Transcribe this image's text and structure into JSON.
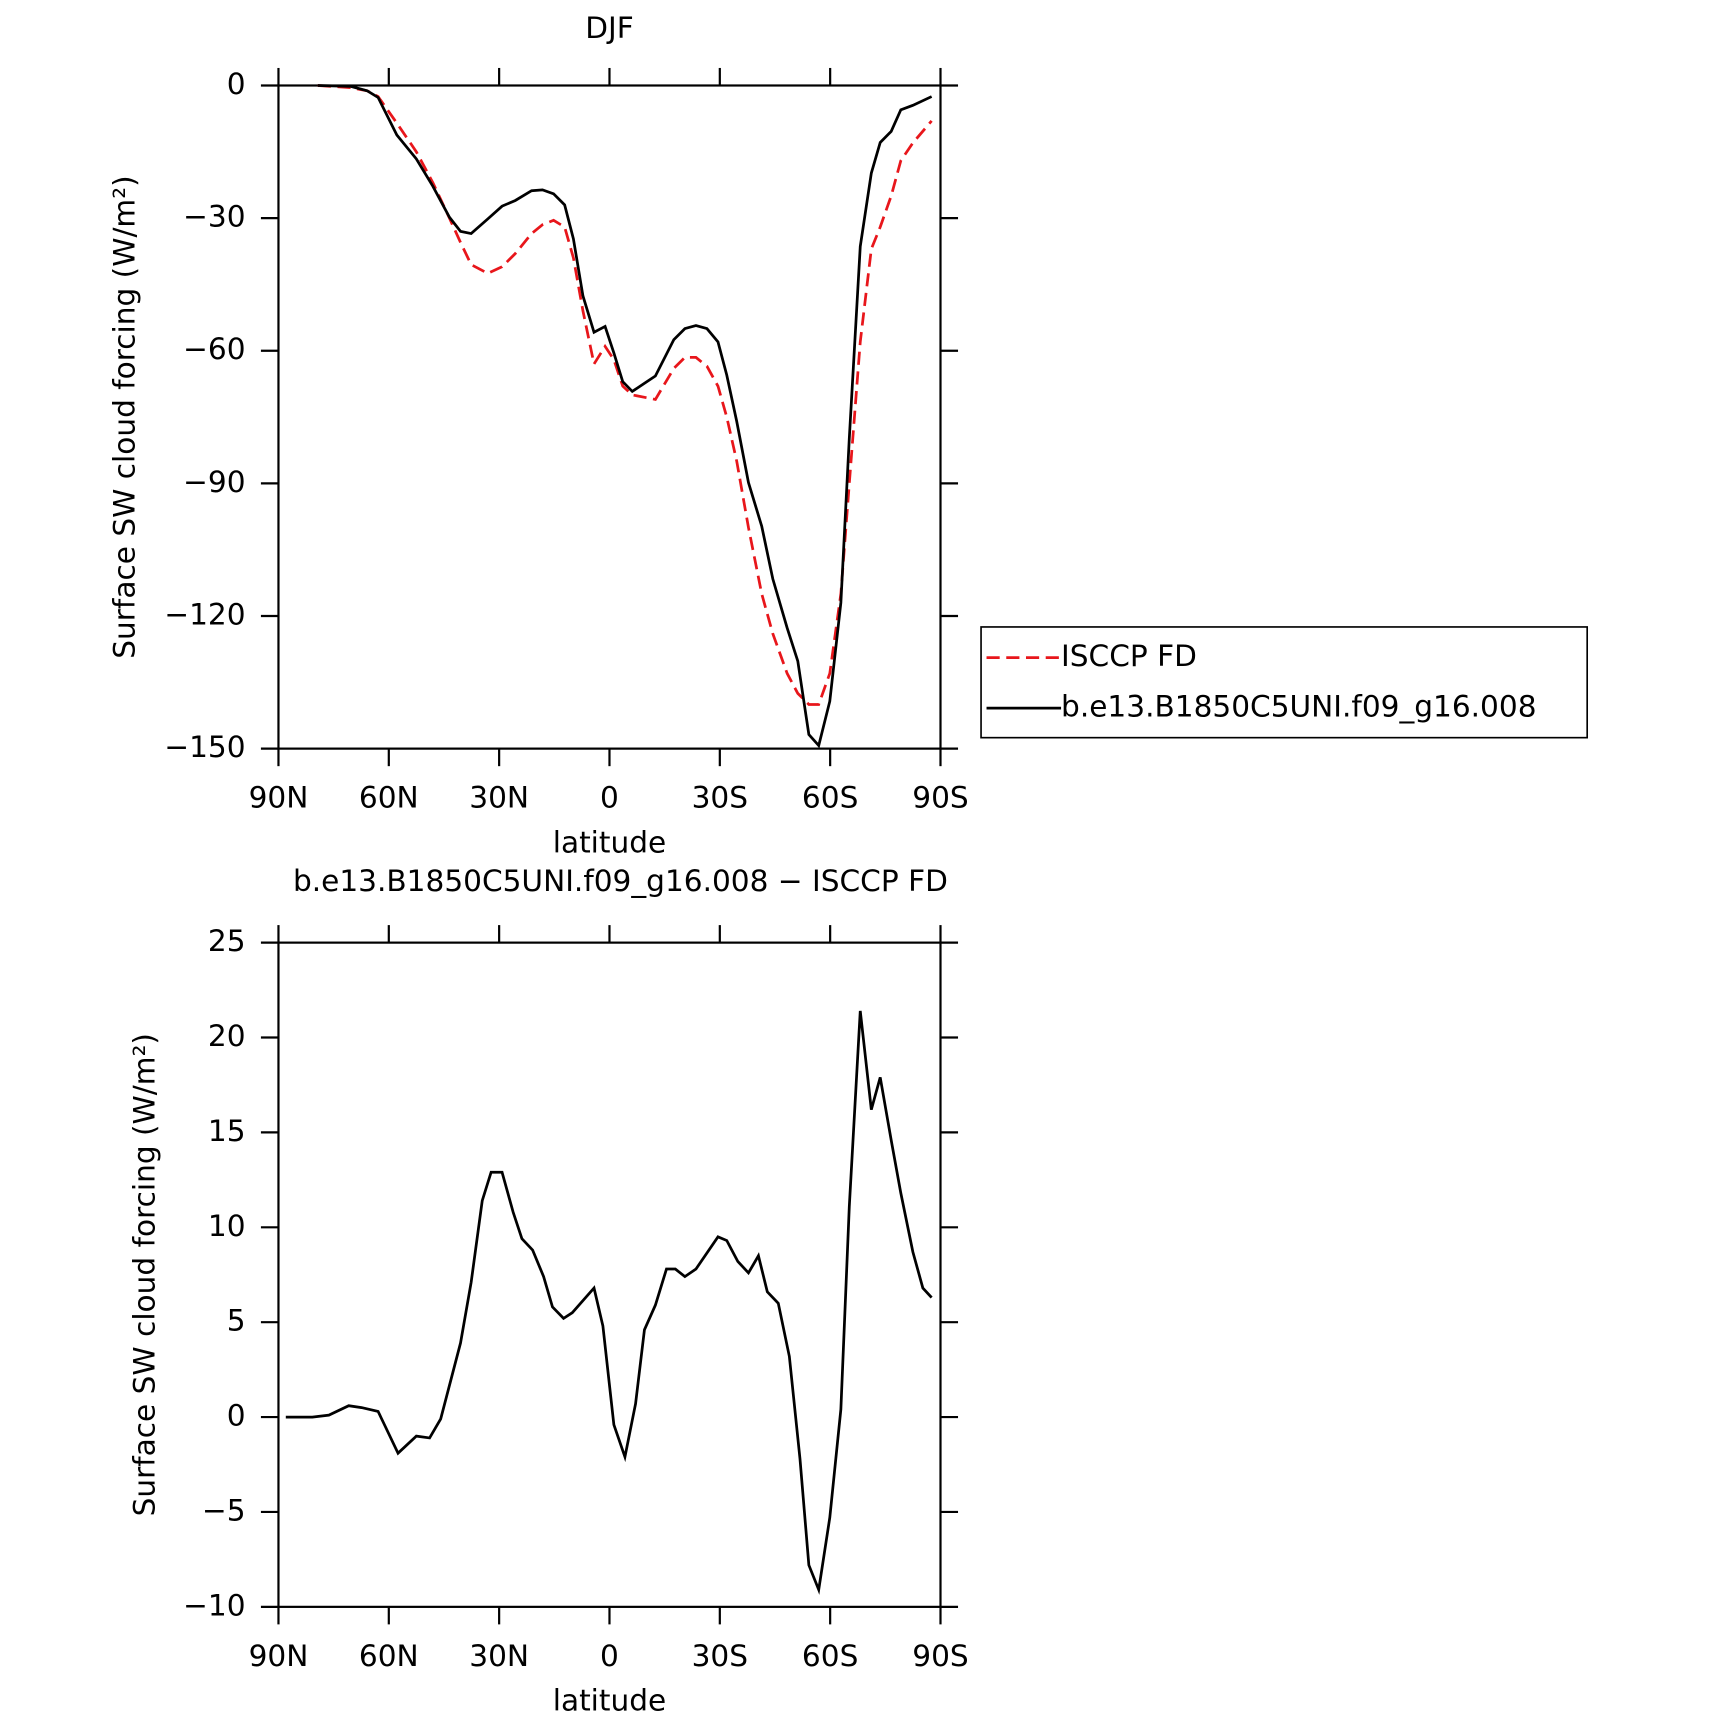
{
  "chart_data": [
    {
      "type": "line",
      "title": "DJF",
      "ylabel": "Surface SW cloud forcing (W/m²)",
      "xlabel": "latitude",
      "xlim": [
        90,
        -90
      ],
      "xticks": [
        {
          "value": 90,
          "label": "90N"
        },
        {
          "value": 60,
          "label": "60N"
        },
        {
          "value": 30,
          "label": "30N"
        },
        0,
        {
          "value": -30,
          "label": "30S"
        },
        {
          "value": -60,
          "label": "60S"
        },
        {
          "value": -90,
          "label": "90S"
        }
      ],
      "ylim": [
        -150,
        0
      ],
      "yticks": [
        {
          "value": 0,
          "label": "0"
        },
        {
          "value": -30,
          "label": "−30"
        },
        {
          "value": -60,
          "label": "−60"
        },
        {
          "value": -90,
          "label": "−90"
        },
        {
          "value": -120,
          "label": "−120"
        },
        {
          "value": -150,
          "label": "−150"
        }
      ],
      "legend": "right",
      "x": [
        79.3,
        70.3,
        65.9,
        62.9,
        57.8,
        52.5,
        48,
        43.5,
        40.5,
        37.6,
        33.1,
        29.2,
        25.6,
        21.2,
        18.2,
        15.2,
        12.2,
        9.8,
        7.2,
        4.2,
        1.2,
        -1.2,
        -3.6,
        -6.2,
        -12.5,
        -17.5,
        -20.5,
        -23.5,
        -26.5,
        -29.5,
        -31.9,
        -34.6,
        -37.8,
        -41.4,
        -44.4,
        -48.3,
        -51.2,
        -54.2,
        -56.9,
        -59.9,
        -62.9,
        -65.2,
        -68.2,
        -71.2,
        -73.6,
        -76.6,
        -79.2,
        -82.5,
        -87.6
      ],
      "series": [
        {
          "name": "ISCCP FD",
          "color": "#e8161b",
          "linestyle": "dashed",
          "values": [
            0,
            -0.5,
            -1.2,
            -2.5,
            -8.5,
            -15,
            -22,
            -30,
            -35.5,
            -40.5,
            -42.5,
            -41,
            -38,
            -33.5,
            -31.5,
            -30.5,
            -32,
            -39,
            -51,
            -63,
            -59,
            -62,
            -68,
            -70,
            -71,
            -64,
            -61.5,
            -61.5,
            -63.5,
            -68,
            -75,
            -85,
            -100,
            -115,
            -124,
            -133,
            -137.5,
            -140,
            -140,
            -133,
            -115,
            -90,
            -58,
            -37,
            -32,
            -25,
            -17,
            -13,
            -8
          ]
        },
        {
          "name": "b.e13.B1850C5UNI.f09_g16.008",
          "color": "#000000",
          "linestyle": "solid",
          "values": [
            0,
            -0.2,
            -1.2,
            -2.7,
            -11.2,
            -16.6,
            -22.8,
            -29.8,
            -33,
            -33.5,
            -30.2,
            -27.3,
            -26,
            -23.8,
            -23.6,
            -24.5,
            -27,
            -34.7,
            -47.6,
            -55.8,
            -54.5,
            -60.5,
            -67,
            -69.2,
            -65.7,
            -57.5,
            -55,
            -54.3,
            -55,
            -58,
            -65.5,
            -76,
            -89.8,
            -99.7,
            -111.6,
            -122.7,
            -130.2,
            -146.8,
            -149.3,
            -139.3,
            -117,
            -79.8,
            -36.4,
            -19.8,
            -12.9,
            -10.4,
            -5.5,
            -4.5,
            -2.5
          ]
        }
      ]
    },
    {
      "type": "line",
      "title": "b.e13.B1850C5UNI.f09_g16.008 − ISCCP FD",
      "ylabel": "Surface SW cloud forcing (W/m²)",
      "xlabel": "latitude",
      "xlim": [
        90,
        -90
      ],
      "xticks": [
        {
          "value": 90,
          "label": "90N"
        },
        {
          "value": 60,
          "label": "60N"
        },
        {
          "value": 30,
          "label": "30N"
        },
        0,
        {
          "value": -30,
          "label": "30S"
        },
        {
          "value": -60,
          "label": "60S"
        },
        {
          "value": -90,
          "label": "90S"
        }
      ],
      "ylim": [
        -10,
        25
      ],
      "yticks": [
        {
          "value": -10,
          "label": "−10"
        },
        {
          "value": -5,
          "label": "−5"
        },
        0,
        5,
        10,
        15,
        20,
        25
      ],
      "x": [
        88,
        80.8,
        76.3,
        70.9,
        67.4,
        62.9,
        57.5,
        52.5,
        48.9,
        45.9,
        40.5,
        37.6,
        34.6,
        32.2,
        29.2,
        26.2,
        23.8,
        20.9,
        17.9,
        15.5,
        12.5,
        10.1,
        4.2,
        1.8,
        -1.2,
        -4.2,
        -7.1,
        -9.5,
        -12.5,
        -15.5,
        -17.9,
        -20.5,
        -23.5,
        -29.5,
        -31.9,
        -34.9,
        -37.8,
        -40.5,
        -42.9,
        -45.9,
        -48.9,
        -51.8,
        -54.2,
        -56.9,
        -59.9,
        -62.9,
        -65.2,
        -68.2,
        -71.2,
        -73.6,
        -76.6,
        -79.2,
        -82.5,
        -85.2,
        -87.6
      ],
      "series": [
        {
          "color": "#000000",
          "linestyle": "solid",
          "values": [
            0,
            0,
            0.1,
            0.6,
            0.5,
            0.3,
            -1.9,
            -1,
            -1.1,
            -0.1,
            3.9,
            7.1,
            11.4,
            12.9,
            12.9,
            10.8,
            9.4,
            8.8,
            7.4,
            5.8,
            5.2,
            5.5,
            6.8,
            4.8,
            -0.4,
            -2.1,
            0.7,
            4.6,
            5.9,
            7.8,
            7.8,
            7.4,
            7.8,
            9.5,
            9.3,
            8.2,
            7.6,
            8.5,
            6.6,
            6,
            3.2,
            -2.2,
            -7.8,
            -9.1,
            -5.3,
            0.4,
            11.1,
            21.4,
            16.2,
            17.9,
            14.6,
            11.8,
            8.7,
            6.8,
            6.3
          ]
        }
      ]
    }
  ]
}
